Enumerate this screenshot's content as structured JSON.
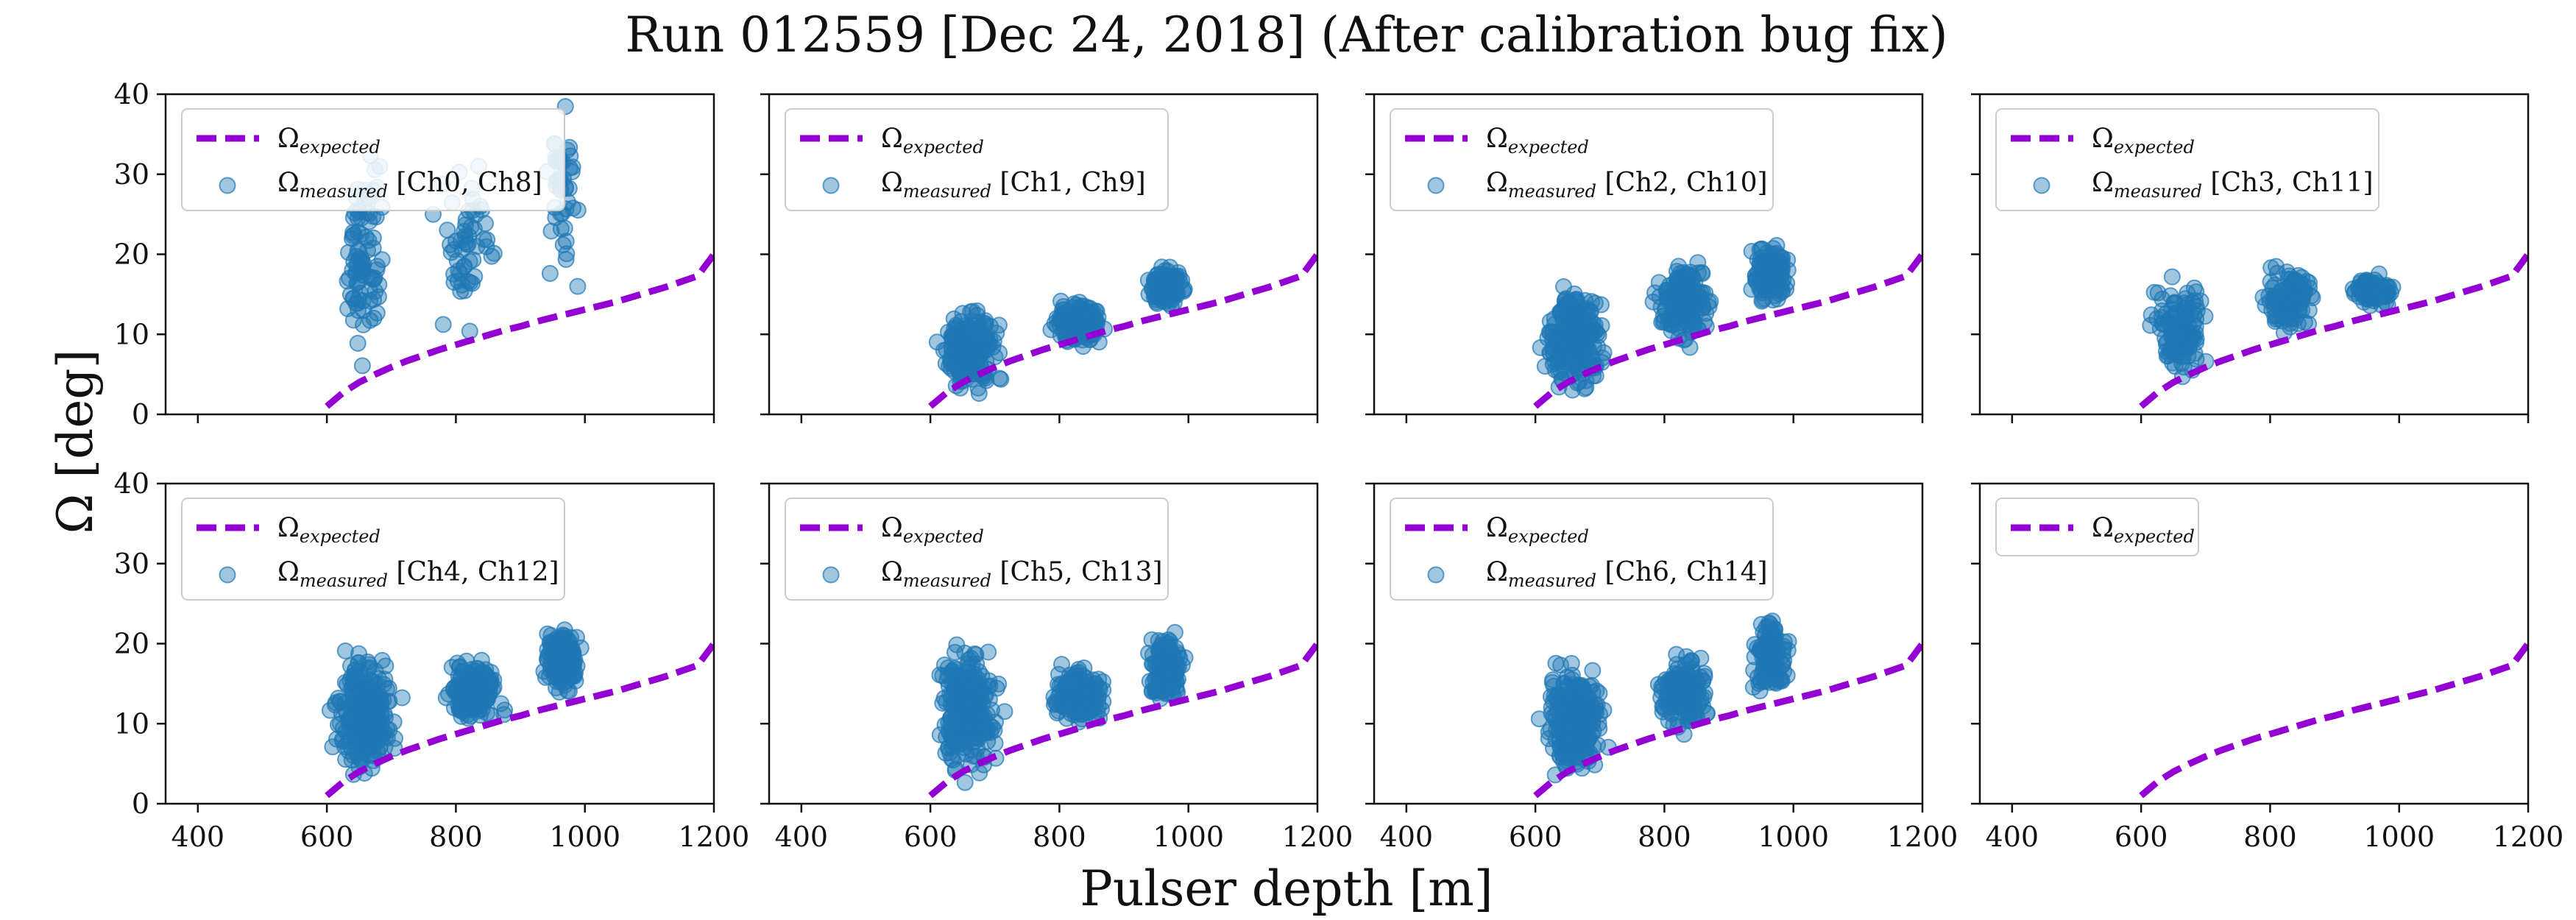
{
  "title": "Run 012559 [Dec 24, 2018] (After calibration bug fix)",
  "xlabel": "Pulser depth [m]",
  "ylabel": "Ω [deg]",
  "colors": {
    "expected_line": "#9400d3",
    "measured_points": "#1f77b4"
  },
  "shared_axes": {
    "xlim": [
      350,
      1200
    ],
    "ylim": [
      0,
      40
    ],
    "xticks": [
      400,
      600,
      800,
      1000,
      1200
    ],
    "yticks": [
      0,
      10,
      20,
      30,
      40
    ]
  },
  "chart_data": [
    {
      "type": "scatter",
      "panel": "row1-col1",
      "legend_position": "upper-left",
      "series": [
        {
          "name": "Ω_expected",
          "kind": "line",
          "style": "dashed",
          "x": [
            600,
            625,
            650,
            675,
            700,
            725,
            750,
            775,
            800,
            825,
            850,
            875,
            900,
            925,
            950,
            975,
            1000,
            1025,
            1050,
            1075,
            1100,
            1125,
            1150,
            1175,
            1200
          ],
          "y": [
            1.0,
            2.7,
            4.0,
            5.0,
            5.9,
            6.7,
            7.4,
            8.1,
            8.7,
            9.3,
            9.9,
            10.5,
            11.0,
            11.6,
            12.1,
            12.6,
            13.1,
            13.6,
            14.1,
            14.7,
            15.3,
            15.9,
            16.6,
            17.3,
            20.0
          ]
        },
        {
          "name": "Ω_measured [Ch0, Ch8]",
          "kind": "points",
          "clusters": [
            {
              "x": [
                620,
                700
              ],
              "y": [
                4,
                37
              ],
              "n": 90
            },
            {
              "x": [
                760,
                870
              ],
              "y": [
                7,
                36
              ],
              "n": 55
            },
            {
              "x": [
                930,
                1000
              ],
              "y": [
                12,
                40
              ],
              "n": 45
            }
          ]
        }
      ]
    },
    {
      "type": "scatter",
      "panel": "row1-col2",
      "legend_position": "upper-left",
      "series": [
        {
          "name": "Ω_expected",
          "kind": "line",
          "style": "dashed",
          "x": [
            600,
            625,
            650,
            675,
            700,
            725,
            750,
            775,
            800,
            825,
            850,
            875,
            900,
            925,
            950,
            975,
            1000,
            1025,
            1050,
            1075,
            1100,
            1125,
            1150,
            1175,
            1200
          ],
          "y": [
            1.0,
            2.7,
            4.0,
            5.0,
            5.9,
            6.7,
            7.4,
            8.1,
            8.7,
            9.3,
            9.9,
            10.5,
            11.0,
            11.6,
            12.1,
            12.6,
            13.1,
            13.6,
            14.1,
            14.7,
            15.3,
            15.9,
            16.6,
            17.3,
            20.0
          ]
        },
        {
          "name": "Ω_measured [Ch1, Ch9]",
          "kind": "points",
          "clusters": [
            {
              "x": [
                600,
                720
              ],
              "y": [
                2,
                14
              ],
              "n": 220
            },
            {
              "x": [
                780,
                880
              ],
              "y": [
                8,
                15
              ],
              "n": 170
            },
            {
              "x": [
                930,
                1000
              ],
              "y": [
                13,
                19
              ],
              "n": 150
            }
          ]
        }
      ]
    },
    {
      "type": "scatter",
      "panel": "row1-col3",
      "legend_position": "upper-left",
      "series": [
        {
          "name": "Ω_expected",
          "kind": "line",
          "style": "dashed",
          "x": [
            600,
            625,
            650,
            675,
            700,
            725,
            750,
            775,
            800,
            825,
            850,
            875,
            900,
            925,
            950,
            975,
            1000,
            1025,
            1050,
            1075,
            1100,
            1125,
            1150,
            1175,
            1200
          ],
          "y": [
            1.0,
            2.7,
            4.0,
            5.0,
            5.9,
            6.7,
            7.4,
            8.1,
            8.7,
            9.3,
            9.9,
            10.5,
            11.0,
            11.6,
            12.1,
            12.6,
            13.1,
            13.6,
            14.1,
            14.7,
            15.3,
            15.9,
            16.6,
            17.3,
            20.0
          ]
        },
        {
          "name": "Ω_measured [Ch2, Ch10]",
          "kind": "points",
          "clusters": [
            {
              "x": [
                600,
                720
              ],
              "y": [
                2,
                17
              ],
              "n": 260
            },
            {
              "x": [
                780,
                880
              ],
              "y": [
                8,
                20
              ],
              "n": 180
            },
            {
              "x": [
                930,
                1000
              ],
              "y": [
                13,
                22
              ],
              "n": 160
            }
          ]
        }
      ]
    },
    {
      "type": "scatter",
      "panel": "row1-col4",
      "legend_position": "upper-left",
      "series": [
        {
          "name": "Ω_expected",
          "kind": "line",
          "style": "dashed",
          "x": [
            600,
            625,
            650,
            675,
            700,
            725,
            750,
            775,
            800,
            825,
            850,
            875,
            900,
            925,
            950,
            975,
            1000,
            1025,
            1050,
            1075,
            1100,
            1125,
            1150,
            1175,
            1200
          ],
          "y": [
            1.0,
            2.7,
            4.0,
            5.0,
            5.9,
            6.7,
            7.4,
            8.1,
            8.7,
            9.3,
            9.9,
            10.5,
            11.0,
            11.6,
            12.1,
            12.6,
            13.1,
            13.6,
            14.1,
            14.7,
            15.3,
            15.9,
            16.6,
            17.3,
            20.0
          ]
        },
        {
          "name": "Ω_measured [Ch3, Ch11]",
          "kind": "points",
          "clusters": [
            {
              "x": [
                600,
                720
              ],
              "y": [
                3,
                19
              ],
              "n": 120
            },
            {
              "x": [
                780,
                880
              ],
              "y": [
                9,
                20
              ],
              "n": 110
            },
            {
              "x": [
                920,
                1000
              ],
              "y": [
                13,
                18
              ],
              "n": 120
            }
          ]
        }
      ]
    },
    {
      "type": "scatter",
      "panel": "row2-col1",
      "legend_position": "upper-left",
      "series": [
        {
          "name": "Ω_expected",
          "kind": "line",
          "style": "dashed",
          "x": [
            600,
            625,
            650,
            675,
            700,
            725,
            750,
            775,
            800,
            825,
            850,
            875,
            900,
            925,
            950,
            975,
            1000,
            1025,
            1050,
            1075,
            1100,
            1125,
            1150,
            1175,
            1200
          ],
          "y": [
            1.0,
            2.7,
            4.0,
            5.0,
            5.9,
            6.7,
            7.4,
            8.1,
            8.7,
            9.3,
            9.9,
            10.5,
            11.0,
            11.6,
            12.1,
            12.6,
            13.1,
            13.6,
            14.1,
            14.7,
            15.3,
            15.9,
            16.6,
            17.3,
            20.0
          ]
        },
        {
          "name": "Ω_measured [Ch4, Ch12]",
          "kind": "points",
          "clusters": [
            {
              "x": [
                600,
                720
              ],
              "y": [
                2,
                20
              ],
              "n": 280
            },
            {
              "x": [
                780,
                880
              ],
              "y": [
                9,
                19
              ],
              "n": 180
            },
            {
              "x": [
                930,
                1000
              ],
              "y": [
                13,
                23
              ],
              "n": 200
            }
          ]
        }
      ]
    },
    {
      "type": "scatter",
      "panel": "row2-col2",
      "legend_position": "upper-left",
      "series": [
        {
          "name": "Ω_expected",
          "kind": "line",
          "style": "dashed",
          "x": [
            600,
            625,
            650,
            675,
            700,
            725,
            750,
            775,
            800,
            825,
            850,
            875,
            900,
            925,
            950,
            975,
            1000,
            1025,
            1050,
            1075,
            1100,
            1125,
            1150,
            1175,
            1200
          ],
          "y": [
            1.0,
            2.7,
            4.0,
            5.0,
            5.9,
            6.7,
            7.4,
            8.1,
            8.7,
            9.3,
            9.9,
            10.5,
            11.0,
            11.6,
            12.1,
            12.6,
            13.1,
            13.6,
            14.1,
            14.7,
            15.3,
            15.9,
            16.6,
            17.3,
            20.0
          ]
        },
        {
          "name": "Ω_measured [Ch5, Ch13]",
          "kind": "points",
          "clusters": [
            {
              "x": [
                600,
                720
              ],
              "y": [
                2,
                21
              ],
              "n": 280
            },
            {
              "x": [
                780,
                880
              ],
              "y": [
                9,
                18
              ],
              "n": 180
            },
            {
              "x": [
                930,
                1000
              ],
              "y": [
                12,
                22
              ],
              "n": 160
            }
          ]
        }
      ]
    },
    {
      "type": "scatter",
      "panel": "row2-col3",
      "legend_position": "upper-left",
      "series": [
        {
          "name": "Ω_expected",
          "kind": "line",
          "style": "dashed",
          "x": [
            600,
            625,
            650,
            675,
            700,
            725,
            750,
            775,
            800,
            825,
            850,
            875,
            900,
            925,
            950,
            975,
            1000,
            1025,
            1050,
            1075,
            1100,
            1125,
            1150,
            1175,
            1200
          ],
          "y": [
            1.0,
            2.7,
            4.0,
            5.0,
            5.9,
            6.7,
            7.4,
            8.1,
            8.7,
            9.3,
            9.9,
            10.5,
            11.0,
            11.6,
            12.1,
            12.6,
            13.1,
            13.6,
            14.1,
            14.7,
            15.3,
            15.9,
            16.6,
            17.3,
            20.0
          ]
        },
        {
          "name": "Ω_measured [Ch6, Ch14]",
          "kind": "points",
          "clusters": [
            {
              "x": [
                600,
                720
              ],
              "y": [
                2,
                19
              ],
              "n": 260
            },
            {
              "x": [
                780,
                880
              ],
              "y": [
                8,
                20
              ],
              "n": 160
            },
            {
              "x": [
                930,
                1000
              ],
              "y": [
                13,
                24
              ],
              "n": 130
            }
          ]
        }
      ]
    },
    {
      "type": "line",
      "panel": "row2-col4",
      "legend_position": "upper-left",
      "series": [
        {
          "name": "Ω_expected",
          "kind": "line",
          "style": "dashed",
          "x": [
            600,
            625,
            650,
            675,
            700,
            725,
            750,
            775,
            800,
            825,
            850,
            875,
            900,
            925,
            950,
            975,
            1000,
            1025,
            1050,
            1075,
            1100,
            1125,
            1150,
            1175,
            1200
          ],
          "y": [
            1.0,
            2.7,
            4.0,
            5.0,
            5.9,
            6.7,
            7.4,
            8.1,
            8.7,
            9.3,
            9.9,
            10.5,
            11.0,
            11.6,
            12.1,
            12.6,
            13.1,
            13.6,
            14.1,
            14.7,
            15.3,
            15.9,
            16.6,
            17.3,
            20.0
          ]
        }
      ]
    }
  ]
}
